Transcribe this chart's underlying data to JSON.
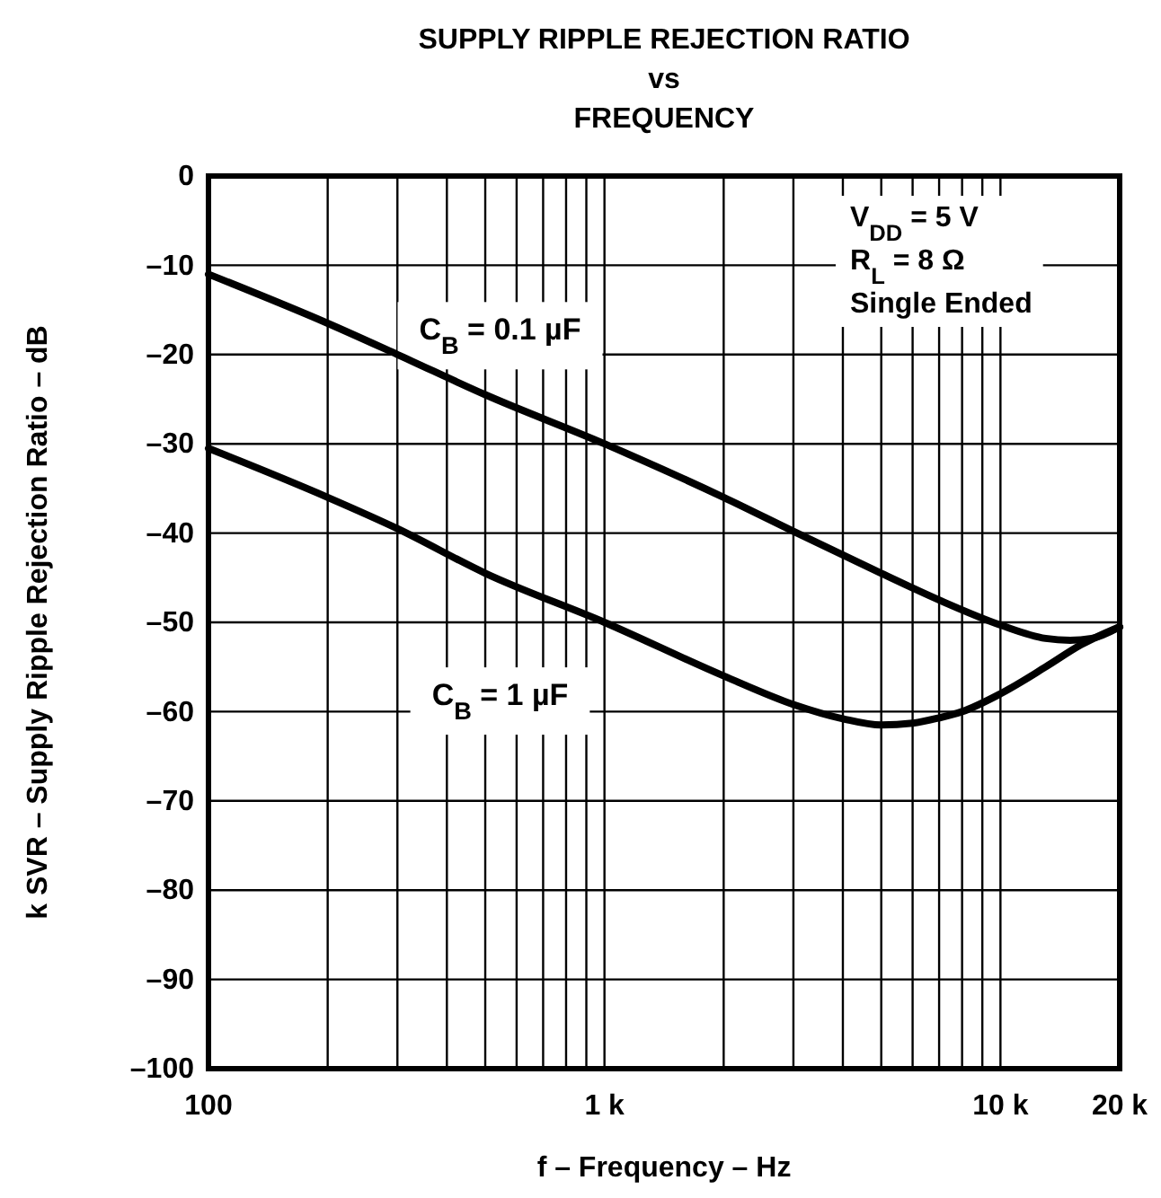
{
  "chart_data": {
    "type": "line",
    "title": "SUPPLY RIPPLE REJECTION RATIO\nvs\nFREQUENCY",
    "xlabel": "f – Frequency – Hz",
    "ylabel": "k SVR – Supply Ripple Rejection Ratio – dB",
    "annotations": [
      "V$_{DD}$ = 5 V",
      "R$_{L}$ = 8 Ω",
      "Single Ended"
    ],
    "log": "x",
    "grid": true,
    "legend": false,
    "marker": "none",
    "line_style": "solid",
    "xlim": [
      100,
      20000
    ],
    "xticks": [
      100,
      {
        "value": 200,
        "label": null
      },
      {
        "value": 300,
        "label": null
      },
      {
        "value": 400,
        "label": null
      },
      {
        "value": 500,
        "label": null
      },
      {
        "value": 600,
        "label": null
      },
      {
        "value": 700,
        "label": null
      },
      {
        "value": 800,
        "label": null
      },
      {
        "value": 900,
        "label": null
      },
      {
        "value": 1000,
        "label": "1 k"
      },
      {
        "value": 2000,
        "label": null
      },
      {
        "value": 3000,
        "label": null
      },
      {
        "value": 4000,
        "label": null
      },
      {
        "value": 5000,
        "label": null
      },
      {
        "value": 6000,
        "label": null
      },
      {
        "value": 7000,
        "label": null
      },
      {
        "value": 8000,
        "label": null
      },
      {
        "value": 9000,
        "label": null
      },
      {
        "value": 10000,
        "label": "10 k"
      },
      {
        "value": 20000,
        "label": "20 k"
      }
    ],
    "ylim": [
      -100,
      0
    ],
    "yticks": [
      {
        "value": -100,
        "label": "–100"
      },
      {
        "value": -90,
        "label": "–90"
      },
      {
        "value": -80,
        "label": "–80"
      },
      {
        "value": -70,
        "label": "–70"
      },
      {
        "value": -60,
        "label": "–60"
      },
      {
        "value": -50,
        "label": "–50"
      },
      {
        "value": -40,
        "label": "–40"
      },
      {
        "value": -30,
        "label": "–30"
      },
      {
        "value": -20,
        "label": "–20"
      },
      {
        "value": -10,
        "label": "–10"
      },
      0
    ],
    "series": [
      {
        "name": "C$_{B}$ = 0.1 µF",
        "color": "#000000",
        "x": [
          100,
          200,
          300,
          500,
          1000,
          2000,
          3000,
          5000,
          7000,
          10000,
          13000,
          15000,
          17000,
          20000
        ],
        "values": [
          -11,
          -16.5,
          -20,
          -24.5,
          -30,
          -36,
          -39.8,
          -44.5,
          -47.5,
          -50.3,
          -51.8,
          -52,
          -51.8,
          -50.5
        ]
      },
      {
        "name": "C$_{B}$ = 1 µF",
        "color": "#000000",
        "x": [
          100,
          200,
          300,
          500,
          1000,
          2000,
          3000,
          4000,
          5000,
          6000,
          7000,
          8000,
          10000,
          13000,
          16000,
          20000
        ],
        "values": [
          -30.5,
          -36,
          -39.5,
          -44.5,
          -50,
          -56,
          -59.2,
          -60.8,
          -61.5,
          -61.3,
          -60.7,
          -60,
          -58,
          -55,
          -52.5,
          -50.5
        ]
      }
    ]
  }
}
